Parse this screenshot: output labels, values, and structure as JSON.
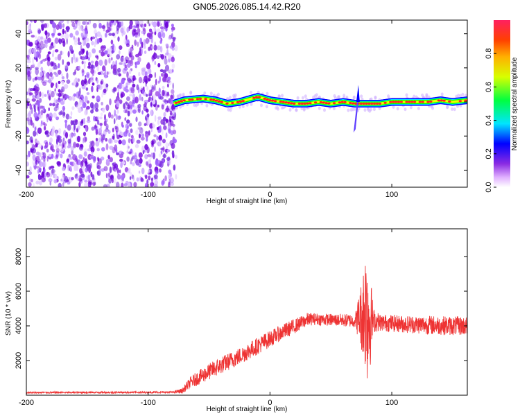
{
  "title": "GN05.2026.085.14.42.R20",
  "chart_data": [
    {
      "type": "heatmap",
      "name": "spectrogram",
      "xlabel": "Height of straight line (km)",
      "ylabel": "Frequency (Hz)",
      "xlim": [
        -200,
        162
      ],
      "ylim": [
        -50,
        48
      ],
      "xticks": [
        -200,
        -100,
        0,
        100
      ],
      "yticks": [
        -40,
        -20,
        0,
        20,
        40
      ],
      "noise_region_x": [
        -200,
        -77
      ],
      "signal_start_x": -79,
      "doppler_line": {
        "x": [
          -79,
          -70,
          -55,
          -45,
          -35,
          -25,
          -15,
          -10,
          -5,
          0,
          10,
          20,
          30,
          40,
          50,
          60,
          70,
          80,
          90,
          100,
          110,
          120,
          130,
          140,
          150,
          162
        ],
        "freq": [
          -1,
          1,
          2,
          1,
          -1,
          0,
          2,
          3,
          2,
          1,
          0,
          -1,
          -1,
          0,
          -1,
          0,
          -1,
          -1,
          -1,
          0,
          0,
          0,
          0,
          1,
          0,
          1
        ]
      },
      "transient_spike": {
        "x": 72,
        "freq_max": 10,
        "freq_min": -18
      },
      "colorbar": {
        "label": "Normalized spectral amplitude",
        "range": [
          0,
          1
        ],
        "ticks": [
          "0.0",
          "0.2",
          "0.4",
          "0.6",
          "0.8"
        ],
        "tick_values": [
          0.0,
          0.2,
          0.4,
          0.6,
          0.8
        ]
      },
      "colors": {
        "noise": "#8a2be2",
        "low": "#0000ff",
        "mid": "#00ff00",
        "high": "#ff2020"
      }
    },
    {
      "type": "line",
      "name": "snr",
      "xlabel": "Height of straight line (km)",
      "ylabel": "SNR (10 * v/v)",
      "xlim": [
        -200,
        162
      ],
      "ylim": [
        0,
        9600
      ],
      "xticks": [
        -200,
        -100,
        0,
        100
      ],
      "yticks": [
        2000,
        4000,
        6000,
        8000
      ],
      "color": "#ee3333",
      "envelope": {
        "x": [
          -200,
          -80,
          -72,
          -65,
          -55,
          -45,
          -35,
          -25,
          -15,
          -5,
          5,
          15,
          25,
          30,
          35,
          50,
          70,
          75,
          78,
          80,
          82,
          85,
          90,
          110,
          130,
          150,
          162
        ],
        "mean": [
          150,
          170,
          250,
          750,
          1150,
          1550,
          1900,
          2250,
          2650,
          3050,
          3450,
          3800,
          4150,
          4350,
          4400,
          4350,
          4300,
          4600,
          5000,
          5000,
          4400,
          4300,
          4200,
          4100,
          4050,
          4000,
          4000
        ],
        "amplitude": [
          50,
          50,
          150,
          350,
          450,
          500,
          500,
          500,
          500,
          500,
          450,
          450,
          400,
          400,
          350,
          350,
          400,
          2000,
          3500,
          4500,
          3000,
          700,
          500,
          500,
          550,
          550,
          550
        ]
      }
    }
  ]
}
